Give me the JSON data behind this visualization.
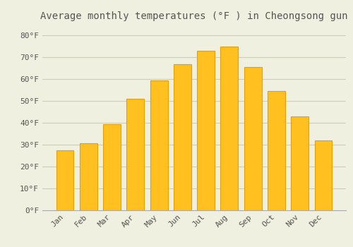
{
  "title": "Average monthly temperatures (°F ) in Cheongsong gun",
  "months": [
    "Jan",
    "Feb",
    "Mar",
    "Apr",
    "May",
    "Jun",
    "Jul",
    "Aug",
    "Sep",
    "Oct",
    "Nov",
    "Dec"
  ],
  "values": [
    27.5,
    30.5,
    39.5,
    51.0,
    59.5,
    67.0,
    73.0,
    75.0,
    65.5,
    54.5,
    43.0,
    32.0
  ],
  "bar_color": "#FFC020",
  "bar_edge_color": "#E8A000",
  "background_color": "#F0F0E0",
  "grid_color": "#CCCCBB",
  "text_color": "#555555",
  "ylim": [
    0,
    85
  ],
  "yticks": [
    0,
    10,
    20,
    30,
    40,
    50,
    60,
    70,
    80
  ],
  "title_fontsize": 10,
  "tick_fontsize": 8,
  "font_family": "monospace"
}
